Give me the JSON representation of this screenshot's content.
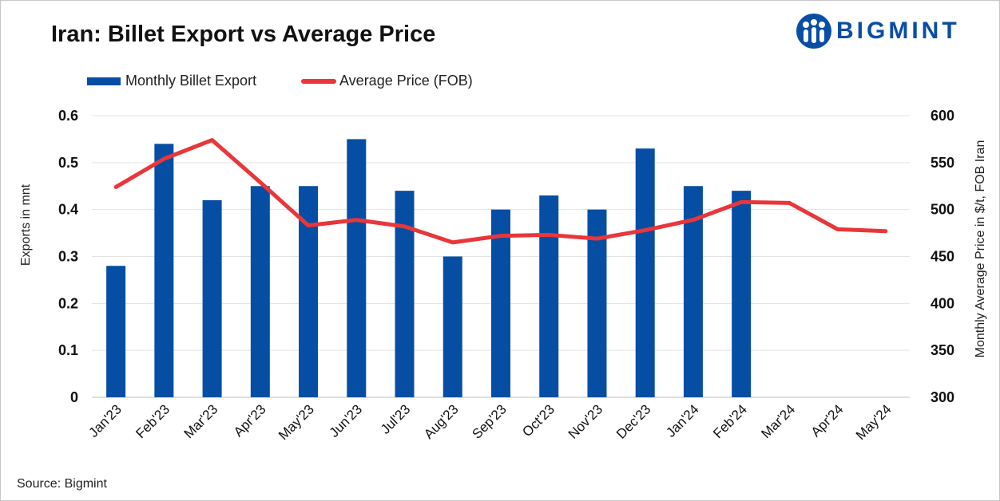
{
  "title": "Iran: Billet Export vs Average Price",
  "logo": {
    "text": "BIGMINT",
    "color": "#0a4ea4"
  },
  "legend": {
    "bar_label": "Monthly Billet Export",
    "line_label": "Average Price (FOB)"
  },
  "source": "Source: Bigmint",
  "chart_data": {
    "type": "bar+line",
    "title": "Iran: Billet Export vs Average Price",
    "categories": [
      "Jan'23",
      "Feb'23",
      "Mar'23",
      "Apr'23",
      "May'23",
      "Jun'23",
      "Jul'23",
      "Aug'23",
      "Sep'23",
      "Oct'23",
      "Nov'23",
      "Dec'23",
      "Jan'24",
      "Feb'24",
      "Mar'24",
      "Apr'24",
      "May'24"
    ],
    "series": [
      {
        "name": "Monthly Billet Export",
        "type": "bar",
        "axis": "left",
        "color": "#064ea4",
        "values": [
          0.28,
          0.54,
          0.42,
          0.45,
          0.45,
          0.55,
          0.44,
          0.3,
          0.4,
          0.43,
          0.4,
          0.53,
          0.45,
          0.44,
          null,
          null,
          null
        ]
      },
      {
        "name": "Average Price (FOB)",
        "type": "line",
        "axis": "right",
        "color": "#e8363a",
        "values": [
          524,
          554,
          574,
          529,
          483,
          489,
          482,
          465,
          472,
          473,
          469,
          478,
          489,
          508,
          507,
          479,
          477
        ]
      }
    ],
    "ylabel_left": "Exports in mnt",
    "ylabel_right": "Monthly Average Price in $/t, FOB Iran",
    "ylim_left": [
      0,
      0.6
    ],
    "yticks_left": [
      "0",
      "0.1",
      "0.2",
      "0.3",
      "0.4",
      "0.5",
      "0.6"
    ],
    "ylim_right": [
      300,
      600
    ],
    "yticks_right": [
      "300",
      "350",
      "400",
      "450",
      "500",
      "550",
      "600"
    ],
    "grid": true,
    "legend_position": "top-left"
  }
}
